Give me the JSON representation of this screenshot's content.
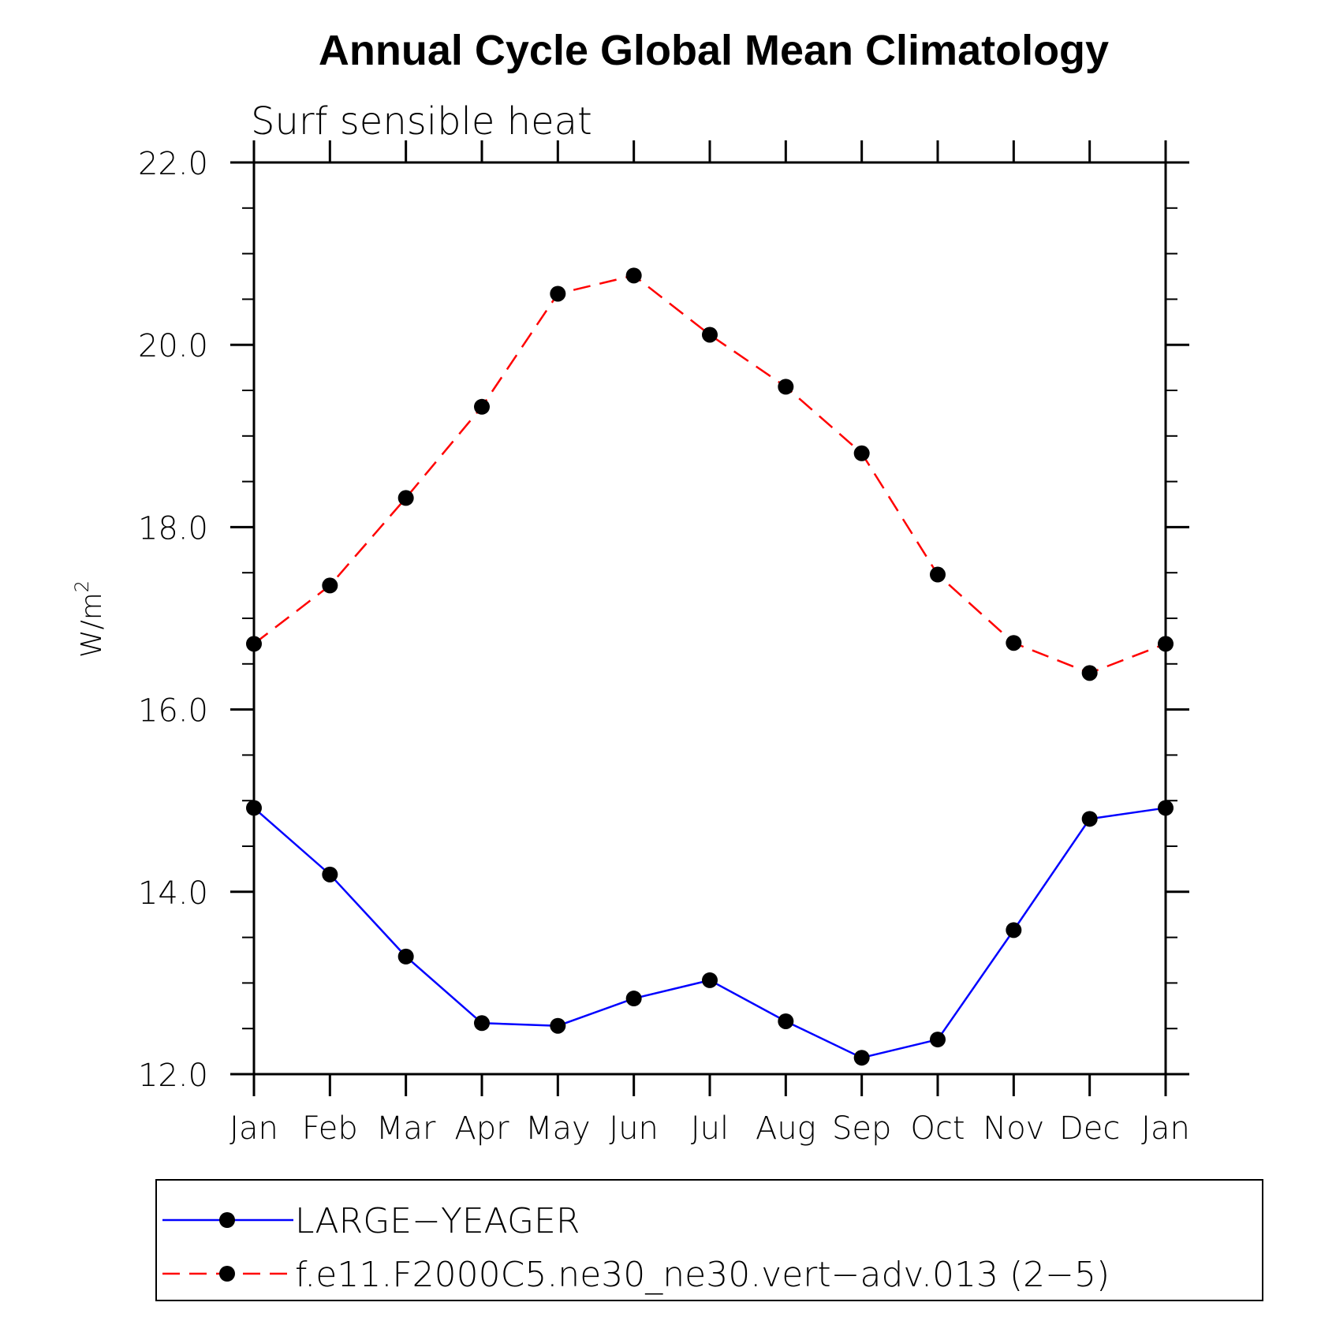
{
  "chart_data": {
    "type": "line",
    "title": "Annual Cycle Global Mean Climatology",
    "subtitle": "Surf sensible heat",
    "ylabel": "W/m",
    "ylabel_superscript": "2",
    "xlabel": "",
    "categories": [
      "Jan",
      "Feb",
      "Mar",
      "Apr",
      "May",
      "Jun",
      "Jul",
      "Aug",
      "Sep",
      "Oct",
      "Nov",
      "Dec",
      "Jan"
    ],
    "ylim": [
      12.0,
      22.0
    ],
    "yticks": [
      "12.0",
      "14.0",
      "16.0",
      "18.0",
      "20.0",
      "22.0"
    ],
    "grid": false,
    "legend_position": "bottom",
    "series": [
      {
        "name": "LARGE−YEAGER",
        "color": "#0000ff",
        "style": "solid",
        "values": [
          14.92,
          14.19,
          13.29,
          12.56,
          12.53,
          12.83,
          13.03,
          12.58,
          12.18,
          12.38,
          13.58,
          14.8,
          14.92
        ]
      },
      {
        "name": "f.e11.F2000C5.ne30_ne30.vert−adv.013 (2−5)",
        "color": "#ff0000",
        "style": "dashed",
        "values": [
          16.72,
          17.36,
          18.32,
          19.32,
          20.56,
          20.76,
          20.11,
          19.54,
          18.81,
          17.48,
          16.73,
          16.4,
          16.72
        ]
      }
    ]
  }
}
